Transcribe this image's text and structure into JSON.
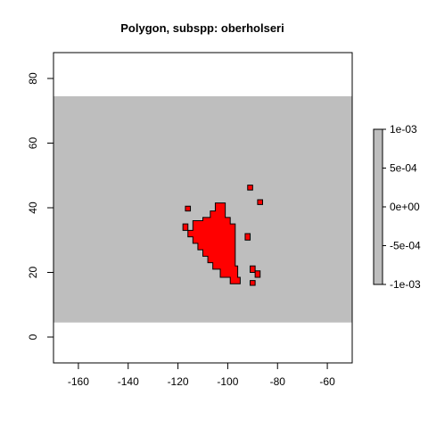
{
  "chart_data": {
    "type": "map",
    "title": "Polygon, subspp: oberholseri",
    "xlabel": "",
    "ylabel": "",
    "xlim": [
      -170,
      -50
    ],
    "ylim": [
      -8,
      88
    ],
    "x_ticks": [
      -160,
      -140,
      -120,
      -100,
      -80,
      -60
    ],
    "y_ticks": [
      0,
      20,
      40,
      60,
      80
    ],
    "grid": false,
    "raster_extent": {
      "xmin": -170,
      "xmax": -50,
      "ymin": 4.5,
      "ymax": 74.5
    },
    "raster_color": "#bebebe",
    "polygon_fill": "#ff0000",
    "polygon_border": "#000000",
    "polygons": [
      [
        [
          -105,
          41.5
        ],
        [
          -101,
          41.5
        ],
        [
          -101,
          37
        ],
        [
          -99,
          37
        ],
        [
          -99,
          35
        ],
        [
          -97,
          35
        ],
        [
          -97,
          22
        ],
        [
          -96,
          22
        ],
        [
          -96,
          18.5
        ],
        [
          -95,
          18.5
        ],
        [
          -95,
          16.5
        ],
        [
          -99,
          16.5
        ],
        [
          -99,
          18.5
        ],
        [
          -103,
          18.5
        ],
        [
          -103,
          21
        ],
        [
          -106,
          21
        ],
        [
          -106,
          23
        ],
        [
          -108,
          23
        ],
        [
          -108,
          25
        ],
        [
          -110,
          25
        ],
        [
          -110,
          27
        ],
        [
          -112,
          27
        ],
        [
          -112,
          29
        ],
        [
          -114,
          29
        ],
        [
          -114,
          31
        ],
        [
          -116,
          31
        ],
        [
          -116,
          33
        ],
        [
          -114,
          33
        ],
        [
          -114,
          36
        ],
        [
          -110,
          36
        ],
        [
          -110,
          37
        ],
        [
          -107,
          37
        ],
        [
          -107,
          39
        ],
        [
          -105,
          39
        ]
      ],
      [
        [
          -115,
          39
        ],
        [
          -115,
          40.5
        ],
        [
          -117,
          40.5
        ],
        [
          -117,
          39
        ]
      ],
      [
        [
          -118,
          33
        ],
        [
          -118,
          35
        ],
        [
          -116,
          35
        ],
        [
          -116,
          33
        ]
      ],
      [
        [
          -92,
          45.5
        ],
        [
          -92,
          47
        ],
        [
          -90,
          47
        ],
        [
          -90,
          45.5
        ]
      ],
      [
        [
          -88,
          41
        ],
        [
          -88,
          42.5
        ],
        [
          -86,
          42.5
        ],
        [
          -86,
          41
        ]
      ],
      [
        [
          -93,
          30
        ],
        [
          -93,
          32
        ],
        [
          -91,
          32
        ],
        [
          -91,
          30
        ]
      ],
      [
        [
          -91,
          20
        ],
        [
          -91,
          22
        ],
        [
          -89,
          22
        ],
        [
          -89,
          20
        ]
      ],
      [
        [
          -89,
          18.5
        ],
        [
          -89,
          20.5
        ],
        [
          -87,
          20.5
        ],
        [
          -87,
          18.5
        ]
      ],
      [
        [
          -91,
          16
        ],
        [
          -91,
          17.5
        ],
        [
          -89,
          17.5
        ],
        [
          -89,
          16
        ]
      ]
    ],
    "legend": {
      "placement": "right",
      "colour": "#bebebe",
      "tick_values": [
        -0.001,
        -0.0005,
        0,
        0.0005,
        0.001
      ],
      "tick_labels": [
        "-1e-03",
        "-5e-04",
        "0e+00",
        "5e-04",
        "1e-03"
      ]
    }
  }
}
